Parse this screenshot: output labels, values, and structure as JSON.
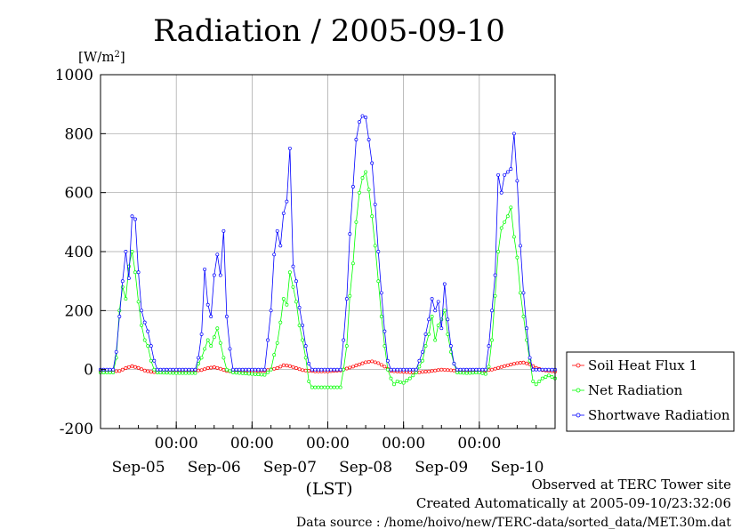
{
  "chart_data": {
    "type": "line",
    "title": "Radiation / 2005-09-10",
    "ylabel": "[W/m",
    "ylabel_sup": "2",
    "ylabel_close": "]",
    "xlabel": "(LST)",
    "ylim": [
      -200,
      1000
    ],
    "xlim": [
      0,
      144
    ],
    "yticks": [
      -200,
      0,
      200,
      400,
      600,
      800,
      1000
    ],
    "ytick_labels": [
      "-200",
      "0",
      "200",
      "400",
      "600",
      "800",
      "1000"
    ],
    "xticks_time": [
      {
        "x": 24,
        "label": "00:00"
      },
      {
        "x": 48,
        "label": "00:00"
      },
      {
        "x": 72,
        "label": "00:00"
      },
      {
        "x": 96,
        "label": "00:00"
      },
      {
        "x": 120,
        "label": "00:00"
      }
    ],
    "xticks_day": [
      {
        "x": 12,
        "label": "Sep-05"
      },
      {
        "x": 36,
        "label": "Sep-06"
      },
      {
        "x": 60,
        "label": "Sep-07"
      },
      {
        "x": 84,
        "label": "Sep-08"
      },
      {
        "x": 108,
        "label": "Sep-09"
      },
      {
        "x": 132,
        "label": "Sep-10"
      }
    ],
    "grid": true,
    "legend_position": "right",
    "series": [
      {
        "name": "Soil Heat Flux 1",
        "color": "#ff0000",
        "points": [
          [
            0,
            -7
          ],
          [
            6,
            -5
          ],
          [
            8,
            5
          ],
          [
            10,
            12
          ],
          [
            12,
            6
          ],
          [
            14,
            -3
          ],
          [
            16,
            -8
          ],
          [
            20,
            -10
          ],
          [
            24,
            -9
          ],
          [
            26,
            -6
          ],
          [
            32,
            -2
          ],
          [
            34,
            5
          ],
          [
            36,
            8
          ],
          [
            38,
            3
          ],
          [
            40,
            -5
          ],
          [
            44,
            -8
          ],
          [
            48,
            -7
          ],
          [
            52,
            -4
          ],
          [
            56,
            5
          ],
          [
            58,
            15
          ],
          [
            60,
            12
          ],
          [
            62,
            5
          ],
          [
            64,
            -2
          ],
          [
            68,
            -6
          ],
          [
            72,
            -6
          ],
          [
            76,
            -3
          ],
          [
            80,
            10
          ],
          [
            84,
            25
          ],
          [
            86,
            28
          ],
          [
            88,
            22
          ],
          [
            90,
            10
          ],
          [
            92,
            -5
          ],
          [
            96,
            -8
          ],
          [
            100,
            -10
          ],
          [
            104,
            -6
          ],
          [
            108,
            0
          ],
          [
            112,
            -3
          ],
          [
            116,
            -6
          ],
          [
            120,
            -6
          ],
          [
            124,
            0
          ],
          [
            128,
            12
          ],
          [
            132,
            22
          ],
          [
            134,
            24
          ],
          [
            136,
            18
          ],
          [
            138,
            6
          ],
          [
            140,
            -2
          ],
          [
            144,
            -7
          ]
        ]
      },
      {
        "name": "Net Radiation",
        "color": "#00ff00",
        "points": [
          [
            0,
            -10
          ],
          [
            4,
            -10
          ],
          [
            5,
            40
          ],
          [
            6,
            200
          ],
          [
            7,
            280
          ],
          [
            8,
            240
          ],
          [
            9,
            350
          ],
          [
            10,
            400
          ],
          [
            11,
            330
          ],
          [
            12,
            230
          ],
          [
            13,
            150
          ],
          [
            14,
            100
          ],
          [
            15,
            80
          ],
          [
            16,
            30
          ],
          [
            17,
            0
          ],
          [
            18,
            -10
          ],
          [
            24,
            -12
          ],
          [
            30,
            -12
          ],
          [
            31,
            20
          ],
          [
            32,
            40
          ],
          [
            33,
            70
          ],
          [
            34,
            100
          ],
          [
            35,
            80
          ],
          [
            36,
            110
          ],
          [
            37,
            140
          ],
          [
            38,
            90
          ],
          [
            39,
            40
          ],
          [
            40,
            0
          ],
          [
            42,
            -10
          ],
          [
            48,
            -15
          ],
          [
            52,
            -18
          ],
          [
            54,
            0
          ],
          [
            55,
            50
          ],
          [
            56,
            90
          ],
          [
            57,
            160
          ],
          [
            58,
            240
          ],
          [
            59,
            220
          ],
          [
            60,
            330
          ],
          [
            61,
            280
          ],
          [
            62,
            230
          ],
          [
            63,
            150
          ],
          [
            64,
            100
          ],
          [
            65,
            40
          ],
          [
            66,
            -40
          ],
          [
            67,
            -60
          ],
          [
            72,
            -60
          ],
          [
            76,
            -60
          ],
          [
            77,
            0
          ],
          [
            78,
            80
          ],
          [
            79,
            250
          ],
          [
            80,
            360
          ],
          [
            81,
            500
          ],
          [
            82,
            600
          ],
          [
            83,
            650
          ],
          [
            84,
            670
          ],
          [
            85,
            610
          ],
          [
            86,
            520
          ],
          [
            87,
            420
          ],
          [
            88,
            300
          ],
          [
            89,
            180
          ],
          [
            90,
            80
          ],
          [
            91,
            0
          ],
          [
            92,
            -30
          ],
          [
            93,
            -50
          ],
          [
            94,
            -40
          ],
          [
            96,
            -45
          ],
          [
            98,
            -30
          ],
          [
            100,
            -10
          ],
          [
            102,
            30
          ],
          [
            103,
            80
          ],
          [
            104,
            120
          ],
          [
            105,
            180
          ],
          [
            106,
            100
          ],
          [
            107,
            150
          ],
          [
            108,
            170
          ],
          [
            109,
            200
          ],
          [
            110,
            120
          ],
          [
            111,
            60
          ],
          [
            112,
            20
          ],
          [
            113,
            -10
          ],
          [
            116,
            -12
          ],
          [
            120,
            -10
          ],
          [
            122,
            -15
          ],
          [
            123,
            10
          ],
          [
            124,
            100
          ],
          [
            125,
            250
          ],
          [
            126,
            400
          ],
          [
            127,
            480
          ],
          [
            128,
            500
          ],
          [
            129,
            520
          ],
          [
            130,
            550
          ],
          [
            131,
            450
          ],
          [
            132,
            380
          ],
          [
            133,
            260
          ],
          [
            134,
            180
          ],
          [
            135,
            100
          ],
          [
            136,
            30
          ],
          [
            137,
            -40
          ],
          [
            138,
            -50
          ],
          [
            140,
            -30
          ],
          [
            142,
            -20
          ],
          [
            144,
            -30
          ]
        ]
      },
      {
        "name": "Shortwave Radiation",
        "color": "#0000ff",
        "points": [
          [
            0,
            0
          ],
          [
            4,
            0
          ],
          [
            5,
            60
          ],
          [
            6,
            180
          ],
          [
            7,
            300
          ],
          [
            8,
            400
          ],
          [
            9,
            310
          ],
          [
            10,
            520
          ],
          [
            11,
            510
          ],
          [
            12,
            330
          ],
          [
            13,
            200
          ],
          [
            14,
            160
          ],
          [
            15,
            130
          ],
          [
            16,
            80
          ],
          [
            17,
            30
          ],
          [
            18,
            0
          ],
          [
            30,
            0
          ],
          [
            31,
            40
          ],
          [
            32,
            120
          ],
          [
            33,
            340
          ],
          [
            34,
            220
          ],
          [
            35,
            180
          ],
          [
            36,
            320
          ],
          [
            37,
            390
          ],
          [
            38,
            320
          ],
          [
            39,
            470
          ],
          [
            40,
            180
          ],
          [
            41,
            70
          ],
          [
            42,
            0
          ],
          [
            52,
            0
          ],
          [
            53,
            100
          ],
          [
            54,
            200
          ],
          [
            55,
            390
          ],
          [
            56,
            470
          ],
          [
            57,
            420
          ],
          [
            58,
            530
          ],
          [
            59,
            570
          ],
          [
            60,
            750
          ],
          [
            61,
            350
          ],
          [
            62,
            300
          ],
          [
            63,
            210
          ],
          [
            64,
            150
          ],
          [
            65,
            80
          ],
          [
            66,
            20
          ],
          [
            67,
            0
          ],
          [
            76,
            0
          ],
          [
            77,
            100
          ],
          [
            78,
            240
          ],
          [
            79,
            460
          ],
          [
            80,
            620
          ],
          [
            81,
            780
          ],
          [
            82,
            840
          ],
          [
            83,
            860
          ],
          [
            84,
            855
          ],
          [
            85,
            780
          ],
          [
            86,
            700
          ],
          [
            87,
            560
          ],
          [
            88,
            400
          ],
          [
            89,
            260
          ],
          [
            90,
            130
          ],
          [
            91,
            30
          ],
          [
            92,
            0
          ],
          [
            100,
            0
          ],
          [
            102,
            60
          ],
          [
            103,
            120
          ],
          [
            104,
            170
          ],
          [
            105,
            240
          ],
          [
            106,
            200
          ],
          [
            107,
            230
          ],
          [
            108,
            140
          ],
          [
            109,
            290
          ],
          [
            110,
            170
          ],
          [
            111,
            80
          ],
          [
            112,
            20
          ],
          [
            113,
            0
          ],
          [
            122,
            0
          ],
          [
            123,
            80
          ],
          [
            124,
            200
          ],
          [
            125,
            320
          ],
          [
            126,
            660
          ],
          [
            127,
            600
          ],
          [
            128,
            660
          ],
          [
            129,
            670
          ],
          [
            130,
            680
          ],
          [
            131,
            800
          ],
          [
            132,
            640
          ],
          [
            133,
            420
          ],
          [
            134,
            260
          ],
          [
            135,
            140
          ],
          [
            136,
            40
          ],
          [
            137,
            0
          ],
          [
            144,
            0
          ]
        ]
      }
    ]
  },
  "footer": {
    "line1": "Observed at TERC Tower site",
    "line2": "Created Automatically at 2005-09-10/23:32:06",
    "line3": "Data source : /home/hoivo/new/TERC-data/sorted_data/MET.30m.dat"
  }
}
